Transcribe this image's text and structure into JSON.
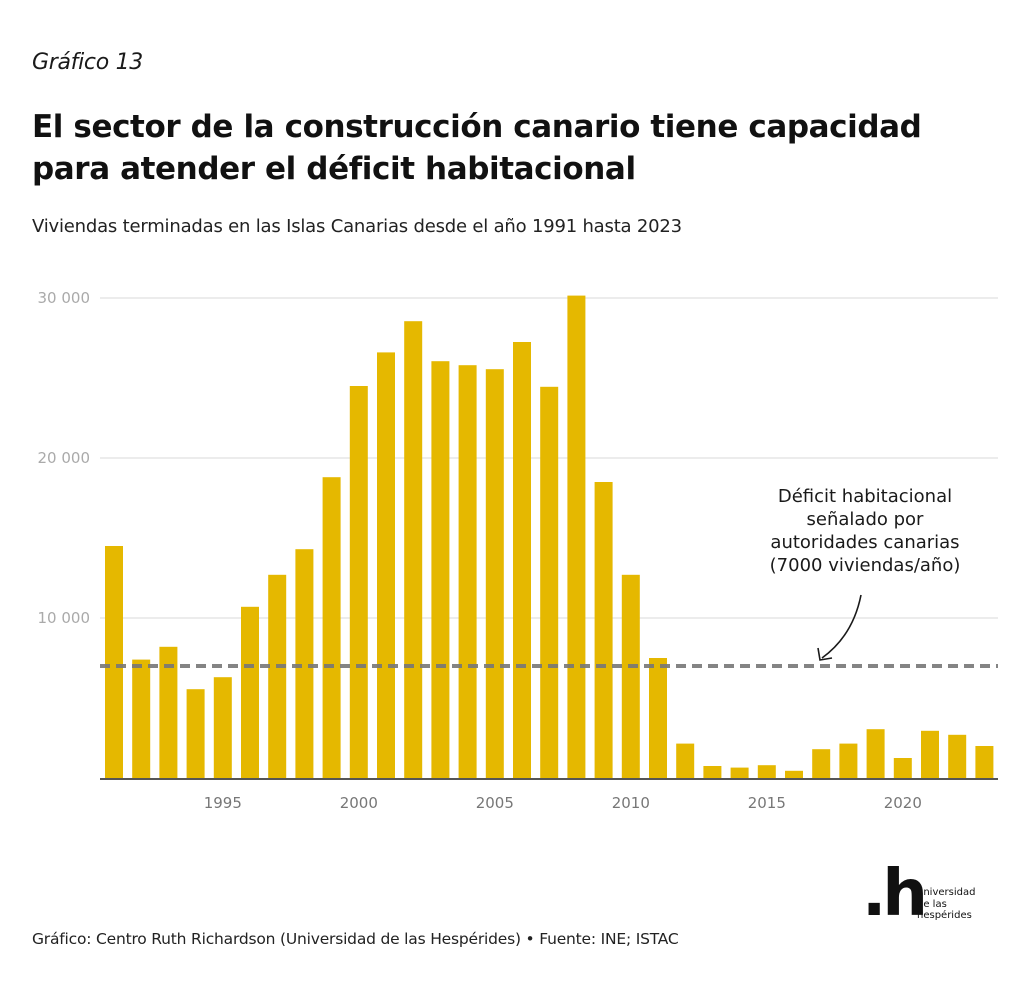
{
  "header": {
    "kicker": "Gráfico 13",
    "title": "El sector de la construcción canario tiene capacidad para atender el déficit habitacional",
    "subtitle": "Viviendas terminadas en las Islas Canarias desde el año 1991 hasta 2023"
  },
  "chart_data": {
    "type": "bar",
    "title": "El sector de la construcción canario tiene capacidad para atender el déficit habitacional",
    "subtitle": "Viviendas terminadas en las Islas Canarias desde el año 1991 hasta 2023",
    "xlabel": "",
    "ylabel": "",
    "categories": [
      1991,
      1992,
      1993,
      1994,
      1995,
      1996,
      1997,
      1998,
      1999,
      2000,
      2001,
      2002,
      2003,
      2004,
      2005,
      2006,
      2007,
      2008,
      2009,
      2010,
      2011,
      2012,
      2013,
      2014,
      2015,
      2016,
      2017,
      2018,
      2019,
      2020,
      2021,
      2022,
      2023
    ],
    "values": [
      14500,
      7400,
      8200,
      5550,
      6300,
      10700,
      12700,
      14300,
      18800,
      24500,
      26600,
      28550,
      26050,
      25800,
      25550,
      27250,
      24450,
      30150,
      18500,
      12700,
      7500,
      2150,
      750,
      650,
      800,
      450,
      1800,
      2150,
      3050,
      1250,
      2950,
      2700,
      2000
    ],
    "ylim": [
      0,
      30000
    ],
    "yticks": [
      10000,
      20000,
      30000
    ],
    "ytick_labels": [
      "10 000",
      "20 000",
      "30 000"
    ],
    "xticks": [
      1995,
      2000,
      2005,
      2010,
      2015,
      2020
    ],
    "xtick_labels": [
      "1995",
      "2000",
      "2005",
      "2010",
      "2015",
      "2020"
    ],
    "grid": true,
    "bar_color": "#e5b800",
    "reference_line": {
      "value": 7000,
      "style": "dashed",
      "color": "#777777",
      "annotation": [
        "Déficit habitacional",
        "señalado por",
        "autoridades canarias",
        "(7000 viviendas/año)"
      ]
    }
  },
  "footer": {
    "source": "Gráfico: Centro Ruth Richardson (Universidad de las Hespérides) • Fuente: INE; ISTAC",
    "logo_mark": ".h",
    "logo_lines": [
      "universidad",
      "de las",
      "hespérides"
    ]
  }
}
